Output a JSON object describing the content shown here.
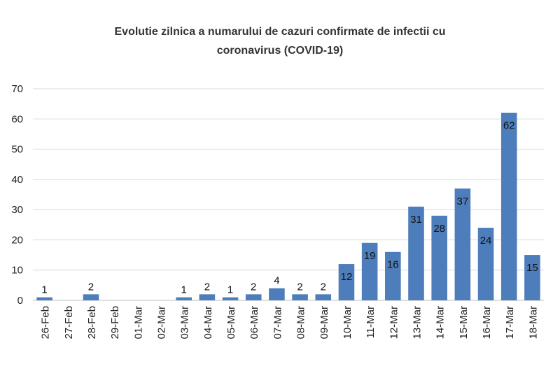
{
  "chart_data": {
    "type": "bar",
    "title_lines": [
      "Evolutie zilnica a numarului de cazuri confirmate de infectii cu",
      "coronavirus (COVID-19)"
    ],
    "categories": [
      "26-Feb",
      "27-Feb",
      "28-Feb",
      "29-Feb",
      "01-Mar",
      "02-Mar",
      "03-Mar",
      "04-Mar",
      "05-Mar",
      "06-Mar",
      "07-Mar",
      "08-Mar",
      "09-Mar",
      "10-Mar",
      "11-Mar",
      "12-Mar",
      "13-Mar",
      "14-Mar",
      "15-Mar",
      "16-Mar",
      "17-Mar",
      "18-Mar"
    ],
    "values": [
      1,
      0,
      2,
      0,
      0,
      0,
      1,
      2,
      1,
      2,
      4,
      2,
      2,
      12,
      19,
      16,
      31,
      28,
      37,
      24,
      62,
      15
    ],
    "data_labels": [
      "1",
      "",
      "2",
      "",
      "",
      "",
      "1",
      "2",
      "1",
      "2",
      "4",
      "2",
      "2",
      "12",
      "19",
      "16",
      "31",
      "28",
      "37",
      "24",
      "62",
      "15"
    ],
    "ylim": [
      0,
      70
    ],
    "yticks": [
      0,
      10,
      20,
      30,
      40,
      50,
      60,
      70
    ],
    "grid": true,
    "bar_color": "#4e7dbb",
    "grid_color": "#d9d9d9",
    "axis_color": "#bfbfbf"
  }
}
